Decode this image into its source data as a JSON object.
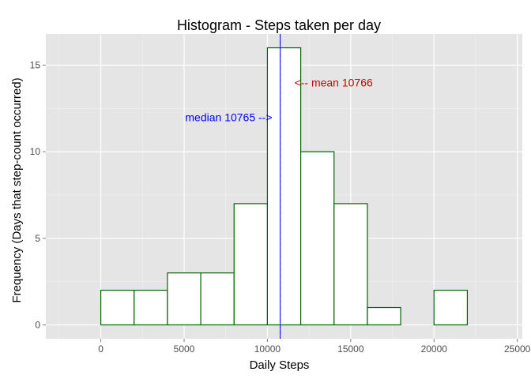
{
  "chart_data": {
    "type": "bar",
    "title": "Histogram - Steps taken per day",
    "xlabel": "Daily Steps",
    "ylabel": "Frequency (Days that step-count occurred)",
    "bins": [
      {
        "start": -2000,
        "end": 0,
        "count": 0
      },
      {
        "start": 0,
        "end": 2000,
        "count": 2
      },
      {
        "start": 2000,
        "end": 4000,
        "count": 2
      },
      {
        "start": 4000,
        "end": 6000,
        "count": 3
      },
      {
        "start": 6000,
        "end": 8000,
        "count": 3
      },
      {
        "start": 8000,
        "end": 10000,
        "count": 7
      },
      {
        "start": 10000,
        "end": 12000,
        "count": 16
      },
      {
        "start": 12000,
        "end": 14000,
        "count": 10
      },
      {
        "start": 14000,
        "end": 16000,
        "count": 7
      },
      {
        "start": 16000,
        "end": 18000,
        "count": 1
      },
      {
        "start": 18000,
        "end": 20000,
        "count": 0
      },
      {
        "start": 20000,
        "end": 22000,
        "count": 2
      },
      {
        "start": 22000,
        "end": 24000,
        "count": 0
      }
    ],
    "xlim": [
      -3300,
      25300
    ],
    "ylim": [
      -0.8,
      16.8
    ],
    "x_ticks": [
      0,
      5000,
      10000,
      15000,
      20000,
      25000
    ],
    "y_ticks": [
      0,
      5,
      10,
      15
    ],
    "grid": true,
    "bar_fill": "#ffffff",
    "bar_outline": "#006400",
    "panel_background": "#e5e5e5",
    "grid_color": "#ffffff",
    "mean_line": {
      "value": 10766,
      "color": "#cc0000",
      "label": "<-- mean 10766",
      "label_y": 14
    },
    "median_line": {
      "value": 10765,
      "color": "#0000ff",
      "label": "median 10765 -->",
      "label_y": 12
    }
  }
}
